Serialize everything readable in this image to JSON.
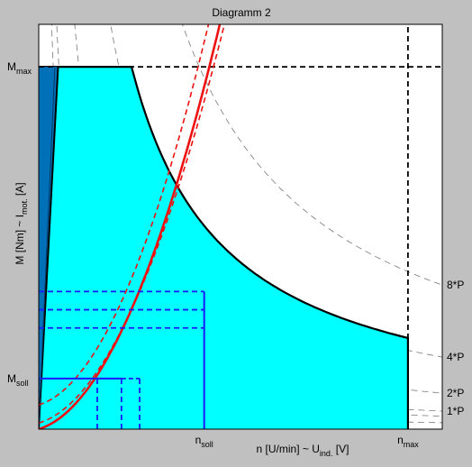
{
  "chart_data": {
    "type": "line",
    "title": "Diagramm 2",
    "xlabel": {
      "main": "n [U/min] ~ U",
      "sub": "ind.",
      "tail": " [V]"
    },
    "ylabel": {
      "main": "M [Nm] ~ I",
      "sub": "mot.",
      "tail": " [A]"
    },
    "x_ticks": [
      {
        "main": "n",
        "sub": "soll",
        "x": 0.41
      },
      {
        "main": "n",
        "sub": "max",
        "x": 0.915
      }
    ],
    "y_ticks": [
      {
        "main": "M",
        "sub": "max",
        "y": 0.895
      },
      {
        "main": "M",
        "sub": "soll",
        "y": 0.125
      }
    ],
    "power_curve_labels": [
      {
        "text": "8*P",
        "k": 8
      },
      {
        "text": "4*P",
        "k": 4
      },
      {
        "text": "2*P",
        "k": 2
      },
      {
        "text": "1*P",
        "k": 1
      }
    ],
    "power_curve_constant": 0.0445,
    "hyperbola_constants": [
      0.032,
      0.016
    ],
    "xlim": [
      0,
      1
    ],
    "ylim": [
      0,
      1
    ],
    "m_max": 0.895,
    "n_max": 0.915,
    "operating_envelope": {
      "constant_torque_until_x": 0.23,
      "constant_power": 0.206,
      "wedge_top": [
        0.048,
        0.895
      ],
      "inner_wedge_top": [
        0.04,
        0.895
      ]
    },
    "load_curve": {
      "coefficients": [
        0,
        0.3,
        4.3
      ]
    },
    "load_bands": {
      "upper": [
        0.06,
        0.3,
        4.6
      ],
      "lower": [
        0.015,
        0.3,
        4.0
      ]
    },
    "operating_point": {
      "n_soll": 0.41,
      "m_levels": [
        0.34,
        0.295,
        0.25
      ],
      "ms_levels": [
        0.125,
        0.125,
        0.125
      ],
      "ns_lines": [
        0.145,
        0.205,
        0.25
      ]
    },
    "colors": {
      "envelope_fill": "#00ffff",
      "wedge_fill": "#0070b8",
      "load_curve": "#ee1111",
      "operating_lines": "#1a1aff",
      "background": "#c0c0c0",
      "plot_area": "#ffffff"
    },
    "grid": false
  }
}
